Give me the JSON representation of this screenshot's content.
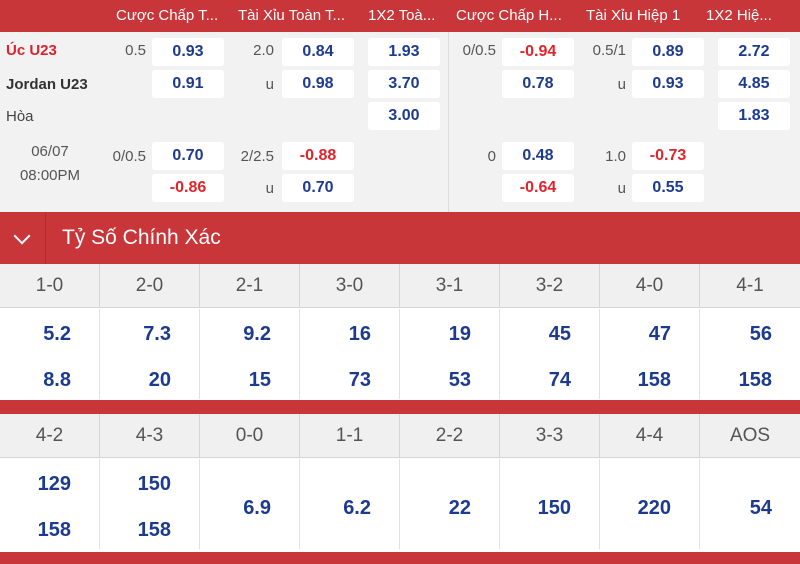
{
  "header": {
    "columns": [
      "Cược Chấp T...",
      "Tài Xỉu Toàn T...",
      "1X2 Toà...",
      "Cược Chấp H...",
      "Tài Xỉu Hiệp 1",
      "1X2 Hiệ..."
    ]
  },
  "match": {
    "home": "Úc U23",
    "away": "Jordan U23",
    "draw": "Hòa",
    "date": "06/07",
    "time": "08:00PM",
    "full": {
      "hdp_line": "0.5",
      "hdp_home": "0.93",
      "hdp_away": "0.91",
      "ou_line": "2.0",
      "ou_over": "0.84",
      "ou_under_label": "u",
      "ou_under": "0.98",
      "x12_home": "1.93",
      "x12_away": "3.70",
      "x12_draw": "3.00",
      "hdp2_line": "0/0.5",
      "hdp2_home": "0.70",
      "hdp2_away": "-0.86",
      "ou2_line": "2/2.5",
      "ou2_over": "-0.88",
      "ou2_under_label": "u",
      "ou2_under": "0.70"
    },
    "half": {
      "hdp_line": "0/0.5",
      "hdp_home": "-0.94",
      "hdp_away": "0.78",
      "ou_line": "0.5/1",
      "ou_over": "0.89",
      "ou_under_label": "u",
      "ou_under": "0.93",
      "x12_home": "2.72",
      "x12_away": "4.85",
      "x12_draw": "1.83",
      "hdp2_line": "0",
      "hdp2_home": "0.48",
      "hdp2_away": "-0.64",
      "ou2_line": "1.0",
      "ou2_over": "-0.73",
      "ou2_under_label": "u",
      "ou2_under": "0.55"
    }
  },
  "correct_score": {
    "title": "Tỷ Số Chính Xác",
    "row1": [
      {
        "score": "1-0",
        "home": "5.2",
        "away": "8.8"
      },
      {
        "score": "2-0",
        "home": "7.3",
        "away": "20"
      },
      {
        "score": "2-1",
        "home": "9.2",
        "away": "15"
      },
      {
        "score": "3-0",
        "home": "16",
        "away": "73"
      },
      {
        "score": "3-1",
        "home": "19",
        "away": "53"
      },
      {
        "score": "3-2",
        "home": "45",
        "away": "74"
      },
      {
        "score": "4-0",
        "home": "47",
        "away": "158"
      },
      {
        "score": "4-1",
        "home": "56",
        "away": "158"
      }
    ],
    "row2": [
      {
        "score": "4-2",
        "home": "129",
        "away": "158"
      },
      {
        "score": "4-3",
        "home": "150",
        "away": "158"
      },
      {
        "score": "0-0",
        "single": "6.9"
      },
      {
        "score": "1-1",
        "single": "6.2"
      },
      {
        "score": "2-2",
        "single": "22"
      },
      {
        "score": "3-3",
        "single": "150"
      },
      {
        "score": "4-4",
        "single": "220"
      },
      {
        "score": "AOS",
        "single": "54"
      }
    ]
  },
  "colors": {
    "accent_red": "#c8363a",
    "odds_blue": "#1c3a8f",
    "odds_negative": "#e0242c"
  }
}
